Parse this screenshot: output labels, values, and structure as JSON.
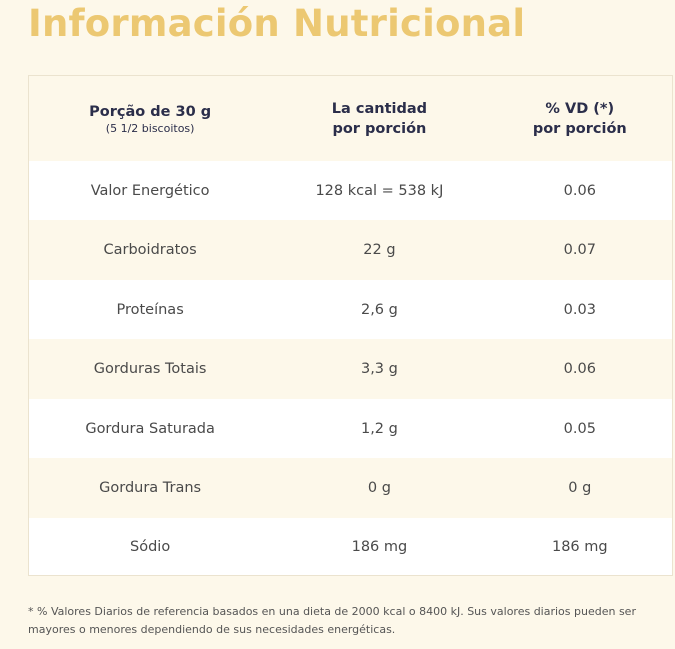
{
  "title": "Información Nutricional",
  "header": {
    "col1_line1": "Porção de 30 g",
    "col1_line2": "(5 1/2 biscoitos)",
    "col2_line1": "La cantidad",
    "col2_line2": "por porción",
    "col3_line1": "% VD (*)",
    "col3_line2": "por porción"
  },
  "rows": [
    {
      "nutrient": "Valor Energético",
      "amount": "128 kcal = 538 kJ",
      "dv": "0.06"
    },
    {
      "nutrient": "Carboidratos",
      "amount": "22 g",
      "dv": "0.07"
    },
    {
      "nutrient": "Proteínas",
      "amount": "2,6 g",
      "dv": "0.03"
    },
    {
      "nutrient": "Gorduras Totais",
      "amount": "3,3 g",
      "dv": "0.06"
    },
    {
      "nutrient": "Gordura Saturada",
      "amount": "1,2 g",
      "dv": "0.05"
    },
    {
      "nutrient": "Gordura Trans",
      "amount": "0 g",
      "dv": "0 g"
    },
    {
      "nutrient": "Sódio",
      "amount": "186 mg",
      "dv": "186 mg"
    }
  ],
  "footnote": "* % Valores Diarios de referencia basados en una dieta de 2000 kcal o 8400 kJ. Sus valores diarios pueden ser mayores o menores dependiendo de sus necesidades energéticas."
}
